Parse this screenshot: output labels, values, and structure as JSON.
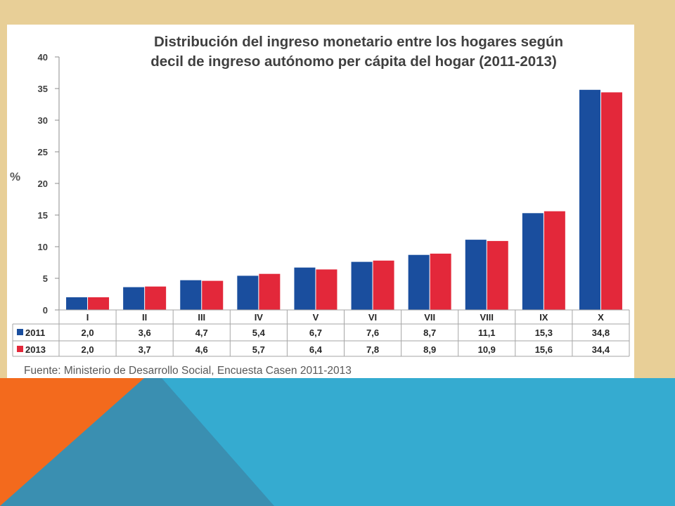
{
  "colors": {
    "tan_background": "#e8cf97",
    "orange_accent": "#f36a1d",
    "steel_blue": "#3a8fb1",
    "light_blue": "#35abd0",
    "series_2011": "#1a4e9e",
    "series_2013": "#e3283a"
  },
  "chart_data": {
    "type": "bar",
    "title": "Distribución del ingreso monetario entre los hogares según decil de ingreso autónomo per cápita del hogar (2011-2013)",
    "title_lines": [
      "Distribución del ingreso monetario entre los hogares según",
      "decil de ingreso autónomo per cápita del hogar (2011-2013)"
    ],
    "ylabel": "%",
    "xlabel": "",
    "ylim": [
      0,
      40
    ],
    "yticks": [
      0,
      5,
      10,
      15,
      20,
      25,
      30,
      35,
      40
    ],
    "grid": false,
    "legend": "data-table",
    "categories": [
      "I",
      "II",
      "III",
      "IV",
      "V",
      "VI",
      "VII",
      "VIII",
      "IX",
      "X"
    ],
    "series": [
      {
        "name": "2011",
        "color": "#1a4e9e",
        "values": [
          2.0,
          3.6,
          4.7,
          5.4,
          6.7,
          7.6,
          8.7,
          11.1,
          15.3,
          34.8
        ],
        "labels": [
          "2,0",
          "3,6",
          "4,7",
          "5,4",
          "6,7",
          "7,6",
          "8,7",
          "11,1",
          "15,3",
          "34,8"
        ]
      },
      {
        "name": "2013",
        "color": "#e3283a",
        "values": [
          2.0,
          3.7,
          4.6,
          5.7,
          6.4,
          7.8,
          8.9,
          10.9,
          15.6,
          34.4
        ],
        "labels": [
          "2,0",
          "3,7",
          "4,6",
          "5,7",
          "6,4",
          "7,8",
          "8,9",
          "10,9",
          "15,6",
          "34,4"
        ]
      }
    ],
    "source": "Fuente: Ministerio de Desarrollo Social, Encuesta Casen 2011-2013"
  }
}
